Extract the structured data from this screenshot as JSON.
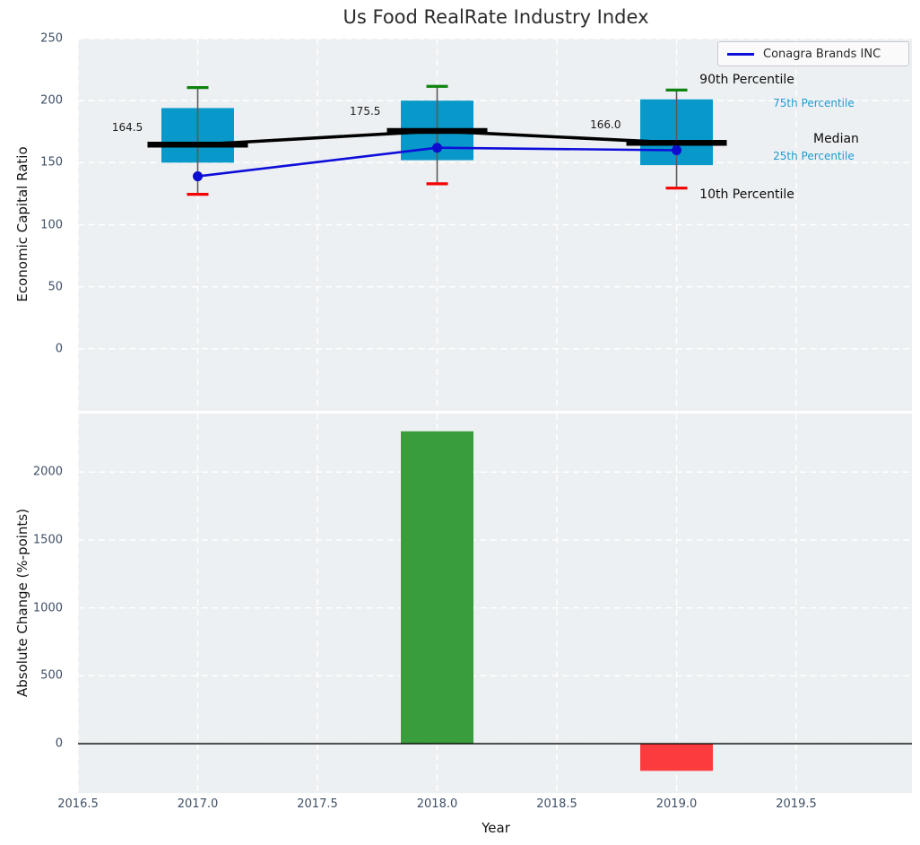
{
  "figure": {
    "title": "Us Food RealRate Industry Index"
  },
  "colors": {
    "axes_bg": "#edf0f2",
    "grid": "#ffffff",
    "box_fill": "#0899ca",
    "median_line": "#000000",
    "trend_line": "#000000",
    "whisker_stem": "#5a5a5a",
    "whisker_cap_high": "#0e830e",
    "whisker_cap_low": "#f50000",
    "company_line": "#0d0dd9",
    "company_dot": "#0d0dcf",
    "bar_positive": "#3a9d3c",
    "bar_negative": "#fb3b3d",
    "zero_line": "#000000",
    "tick_text": "#3f4f65",
    "cyan_label": "#209bce"
  },
  "chart_data": [
    {
      "type": "boxplot-with-line",
      "title": "Us Food RealRate Industry Index",
      "ylabel": "Economic Capital Ratio",
      "ylim": [
        -50,
        250
      ],
      "yticks": [
        0,
        50,
        100,
        150,
        200,
        250
      ],
      "xlim": [
        2016.5,
        2019.983
      ],
      "grid_xticks": [
        2016.5,
        2017.0,
        2017.5,
        2018.0,
        2018.5,
        2019.0,
        2019.5
      ],
      "grid": true,
      "legend_position": "upper right",
      "boxes": [
        {
          "year": 2017,
          "whisker_low": 124.5,
          "q1": 150,
          "median": 164.5,
          "q3": 194,
          "whisker_high": 210.5
        },
        {
          "year": 2018,
          "whisker_low": 133,
          "q1": 152,
          "median": 175.5,
          "q3": 200,
          "whisker_high": 211.5
        },
        {
          "year": 2019,
          "whisker_low": 129.5,
          "q1": 148,
          "median": 166.0,
          "q3": 201,
          "whisker_high": 208.5
        }
      ],
      "series": [
        {
          "name": "Conagra Brands INC",
          "x": [
            2017,
            2018,
            2019
          ],
          "y": [
            139,
            162,
            160
          ]
        }
      ],
      "legend": {
        "label": "Conagra Brands INC"
      },
      "median_annotations": [
        {
          "text": "164.5",
          "x": 2016.642,
          "y": 178.5
        },
        {
          "text": "175.5",
          "x": 2017.635,
          "y": 191.5
        },
        {
          "text": "166.0",
          "x": 2018.639,
          "y": 180.5
        }
      ],
      "side_labels": [
        {
          "text": "90th Percentile",
          "x": 2019.096,
          "y": 216.8,
          "style": "big"
        },
        {
          "text": "75th Percentile",
          "x": 2019.403,
          "y": 197.6,
          "style": "cyan"
        },
        {
          "text": "Median",
          "x": 2019.571,
          "y": 169.0,
          "style": "big"
        },
        {
          "text": "25th Percentile",
          "x": 2019.403,
          "y": 155.5,
          "style": "cyan"
        },
        {
          "text": "10th Percentile",
          "x": 2019.096,
          "y": 123.9,
          "style": "big"
        }
      ]
    },
    {
      "type": "bar",
      "xlabel": "Year",
      "ylabel": "Absolute Change (%-points)",
      "ylim": [
        -363,
        2431
      ],
      "yticks": [
        0,
        500,
        1000,
        1500,
        2000
      ],
      "xlim": [
        2016.5,
        2019.983
      ],
      "xticks": [
        2016.5,
        2017.0,
        2017.5,
        2018.0,
        2018.5,
        2019.0,
        2019.5
      ],
      "grid": true,
      "bars": [
        {
          "x": 2018,
          "value": 2300,
          "color_key": "bar_positive"
        },
        {
          "x": 2019,
          "value": -200,
          "color_key": "bar_negative"
        }
      ],
      "zero_line": true
    }
  ]
}
